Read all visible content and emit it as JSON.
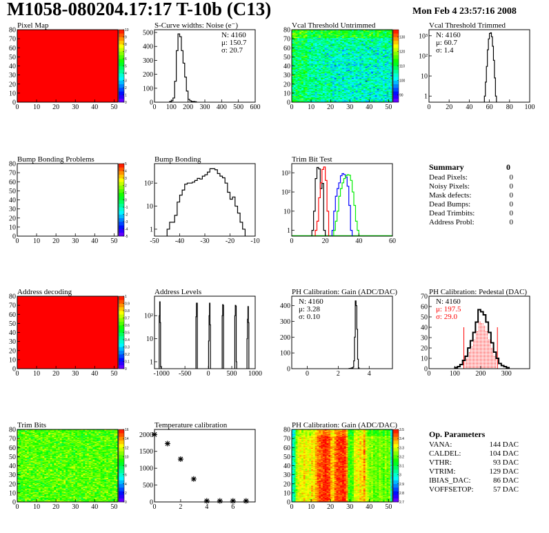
{
  "header": {
    "title": "M1058-080204.17:17 T-10b (C13)",
    "date": "Mon Feb  4 23:57:16 2008"
  },
  "summary": {
    "title": "Summary",
    "total": "0",
    "rows": [
      {
        "label": "Dead Pixels:",
        "value": "0"
      },
      {
        "label": "Noisy Pixels:",
        "value": "0"
      },
      {
        "label": "Mask defects:",
        "value": "0"
      },
      {
        "label": "Dead Bumps:",
        "value": "0"
      },
      {
        "label": "Dead Trimbits:",
        "value": "0"
      },
      {
        "label": "Address Probl:",
        "value": "0"
      }
    ]
  },
  "op_parameters": {
    "title": "Op. Parameters",
    "rows": [
      {
        "label": "VANA:",
        "value": "144 DAC"
      },
      {
        "label": "CALDEL:",
        "value": "104 DAC"
      },
      {
        "label": "VTHR:",
        "value": "93 DAC"
      },
      {
        "label": "VTRIM:",
        "value": "129 DAC"
      },
      {
        "label": "IBIAS_DAC:",
        "value": "86 DAC"
      },
      {
        "label": "VOFFSETOP:",
        "value": "57 DAC"
      }
    ]
  },
  "colors": {
    "palette_low": "#7f00ff",
    "palette_high": "#ff0000",
    "hist_line": "#000000",
    "stat_red": "#ff0000",
    "blue": "#0000ff",
    "green": "#00ee00"
  },
  "chart_data": [
    {
      "type": "heatmap",
      "title": "Pixel Map",
      "xlim": [
        0,
        52
      ],
      "ylim": [
        0,
        80
      ],
      "uniform_value": 10,
      "zlim": [
        0,
        10
      ],
      "x_ticks": [
        "0",
        "10",
        "20",
        "30",
        "40",
        "50"
      ],
      "y_ticks": [
        "0",
        "10",
        "20",
        "30",
        "40",
        "50",
        "60",
        "70",
        "80"
      ],
      "z_ticks": [
        "0",
        "1",
        "2",
        "3",
        "4",
        "5",
        "6",
        "7",
        "8",
        "9",
        "10"
      ]
    },
    {
      "type": "bar",
      "title": "S-Curve widths: Noise (e⁻)",
      "xlim": [
        0,
        600
      ],
      "ylim": [
        0,
        520
      ],
      "x_ticks": [
        "0",
        "100",
        "200",
        "300",
        "400",
        "500",
        "600"
      ],
      "y_ticks": [
        "0",
        "100",
        "200",
        "300",
        "400",
        "500"
      ],
      "bins": {
        "start": 90,
        "width": 10,
        "values": [
          5,
          10,
          30,
          150,
          370,
          490,
          470,
          370,
          280,
          180,
          80,
          20,
          10,
          5,
          5,
          3
        ]
      },
      "stats": [
        "N: 4160",
        "μ: 150.7",
        "σ: 20.7"
      ]
    },
    {
      "type": "heatmap",
      "title": "Vcal Threshold Untrimmed",
      "xlim": [
        0,
        52
      ],
      "ylim": [
        0,
        80
      ],
      "zlim": [
        85,
        135
      ],
      "typical": 106,
      "spread": 6,
      "x_ticks": [
        "0",
        "10",
        "20",
        "30",
        "40",
        "50"
      ],
      "y_ticks": [
        "0",
        "10",
        "20",
        "30",
        "40",
        "50",
        "60",
        "70",
        "80"
      ],
      "z_ticks": [
        "90",
        "100",
        "110",
        "120",
        "130"
      ]
    },
    {
      "type": "bar",
      "title": "Vcal Threshold Trimmed",
      "xlim": [
        0,
        100
      ],
      "ylim": [
        0.5,
        2000
      ],
      "log_y": true,
      "x_ticks": [
        "0",
        "20",
        "40",
        "60",
        "80",
        "100"
      ],
      "y_ticks": [
        "1",
        "10",
        "10²",
        "10³"
      ],
      "bins": {
        "start": 55,
        "width": 1,
        "values": [
          1,
          5,
          30,
          200,
          700,
          1300,
          1400,
          900,
          300,
          60,
          8,
          1
        ]
      },
      "stats": [
        "N: 4160",
        "μ: 60.7",
        "σ:  1.4"
      ]
    },
    {
      "type": "heatmap",
      "title": "Bump Bonding Problems",
      "xlim": [
        0,
        52
      ],
      "ylim": [
        0,
        80
      ],
      "zlim": [
        -5,
        5
      ],
      "empty": true,
      "x_ticks": [
        "0",
        "10",
        "20",
        "30",
        "40",
        "50"
      ],
      "y_ticks": [
        "0",
        "10",
        "20",
        "30",
        "40",
        "50",
        "60",
        "70",
        "80"
      ],
      "z_ticks": [
        "-5",
        "-4",
        "-3",
        "-2",
        "-1",
        "0",
        "1",
        "2",
        "3",
        "4",
        "5"
      ]
    },
    {
      "type": "bar",
      "title": "Bump Bonding",
      "xlim": [
        -50,
        -10
      ],
      "ylim": [
        0.5,
        700
      ],
      "log_y": true,
      "x_ticks": [
        "-50",
        "-40",
        "-30",
        "-20",
        "-10"
      ],
      "y_ticks": [
        "1",
        "10",
        "10²"
      ],
      "bins": {
        "start": -45,
        "width": 1,
        "values": [
          1,
          2,
          2,
          4,
          15,
          30,
          50,
          90,
          100,
          100,
          110,
          130,
          160,
          150,
          200,
          230,
          300,
          420,
          420,
          380,
          260,
          200,
          170,
          100,
          40,
          20,
          25,
          10,
          5,
          2,
          1
        ]
      }
    },
    {
      "type": "bar",
      "title": "Trim Bit Test",
      "xlim": [
        0,
        60
      ],
      "ylim": [
        0.5,
        3000
      ],
      "log_y": true,
      "x_ticks": [
        "0",
        "20",
        "40",
        "60"
      ],
      "y_ticks": [
        "1",
        "10",
        "10²",
        "10³"
      ],
      "series": [
        {
          "color": "#000000",
          "start": 12,
          "width": 1,
          "values": [
            1,
            10,
            500,
            1900,
            1600,
            150,
            280,
            1
          ]
        },
        {
          "color": "#ff0000",
          "start": 14,
          "width": 1,
          "values": [
            1,
            3,
            50,
            300,
            1500,
            2000,
            400,
            10
          ]
        },
        {
          "color": "#0000ff",
          "start": 24,
          "width": 1,
          "values": [
            1,
            10,
            60,
            150,
            300,
            700,
            900,
            800,
            600,
            200,
            20,
            1
          ]
        },
        {
          "color": "#00ee00",
          "start": 25,
          "width": 1,
          "values": [
            1,
            3,
            10,
            60,
            150,
            300,
            500,
            700,
            800,
            750,
            400,
            100,
            20,
            3,
            1
          ]
        }
      ]
    },
    {
      "type": "heatmap",
      "title": "Address decoding",
      "xlim": [
        0,
        52
      ],
      "ylim": [
        0,
        80
      ],
      "uniform_value": 1,
      "zlim": [
        0,
        1
      ],
      "x_ticks": [
        "0",
        "10",
        "20",
        "30",
        "40",
        "50"
      ],
      "y_ticks": [
        "0",
        "10",
        "20",
        "30",
        "40",
        "50",
        "60",
        "70",
        "80"
      ],
      "z_ticks": [
        "0",
        "0.1",
        "0.2",
        "0.3",
        "0.4",
        "0.5",
        "0.6",
        "0.7",
        "0.8",
        "0.9",
        "1"
      ]
    },
    {
      "type": "bar",
      "title": "Address Levels",
      "xlim": [
        -1150,
        1000
      ],
      "ylim": [
        0.5,
        700
      ],
      "log_y": true,
      "x_ticks": [
        "-1000",
        "-500",
        "0",
        "500",
        "1000"
      ],
      "y_ticks": [
        "1",
        "10",
        "10²"
      ],
      "peaks": [
        {
          "start": -1050,
          "width": 10,
          "values": [
            100,
            400,
            50,
            0.6
          ]
        },
        {
          "start": -265,
          "width": 10,
          "values": [
            90,
            350,
            350
          ]
        },
        {
          "start": 5,
          "width": 10,
          "values": [
            8,
            100,
            350,
            40
          ]
        },
        {
          "start": 295,
          "width": 10,
          "values": [
            100,
            300,
            280
          ]
        },
        {
          "start": 565,
          "width": 10,
          "values": [
            100,
            280,
            260,
            1
          ]
        },
        {
          "start": 825,
          "width": 10,
          "values": [
            10,
            70,
            250,
            50
          ]
        }
      ]
    },
    {
      "type": "bar",
      "title": "PH Calibration: Gain (ADC/DAC)",
      "xlim": [
        -1,
        5.5
      ],
      "ylim": [
        0,
        460
      ],
      "x_ticks": [
        "0",
        "2",
        "4"
      ],
      "y_ticks": [
        "0",
        "100",
        "200",
        "300",
        "400"
      ],
      "bins": {
        "start": 2.7,
        "width": 0.05,
        "values": [
          2,
          2,
          3,
          5,
          5,
          10,
          50,
          200,
          430,
          400,
          250,
          60,
          5
        ]
      },
      "stats": [
        "N: 4160",
        "μ: 3.28",
        "σ: 0.10"
      ]
    },
    {
      "type": "bar",
      "title": "PH Calibration: Pedestal (DAC)",
      "xlim": [
        0,
        390
      ],
      "ylim": [
        0,
        70
      ],
      "x_ticks": [
        "0",
        "100",
        "200",
        "300"
      ],
      "y_ticks": [
        "0",
        "10",
        "20",
        "30",
        "40",
        "50",
        "60",
        "70"
      ],
      "bins": {
        "start": 100,
        "width": 10,
        "values": [
          1,
          2,
          4,
          8,
          12,
          20,
          27,
          35,
          45,
          57,
          55,
          52,
          45,
          35,
          25,
          16,
          10,
          5,
          3,
          2,
          1
        ]
      },
      "fit_range": [
        135,
        265
      ],
      "fit_marker_height": 40,
      "stats": [
        "N: 4160",
        "μ: 197.5",
        "σ: 29.0"
      ]
    },
    {
      "type": "heatmap",
      "title": "Trim Bits",
      "xlim": [
        0,
        52
      ],
      "ylim": [
        0,
        80
      ],
      "zlim": [
        0,
        16
      ],
      "typical": 10,
      "spread": 1.6,
      "x_ticks": [
        "0",
        "10",
        "20",
        "30",
        "40",
        "50"
      ],
      "y_ticks": [
        "0",
        "10",
        "20",
        "30",
        "40",
        "50",
        "60",
        "70",
        "80"
      ],
      "z_ticks": [
        "0",
        "2",
        "4",
        "6",
        "8",
        "10",
        "12",
        "14",
        "16"
      ]
    },
    {
      "type": "scatter",
      "title": "Temperature calibration",
      "xlim": [
        0,
        7.7
      ],
      "ylim": [
        0,
        2150
      ],
      "x_ticks": [
        "0",
        "2",
        "4",
        "6"
      ],
      "y_ticks": [
        "0",
        "500",
        "1000",
        "1500",
        "2000"
      ],
      "x": [
        0,
        1,
        2,
        3,
        4,
        5,
        6,
        7
      ],
      "y": [
        2000,
        1730,
        1270,
        680,
        30,
        30,
        30,
        30
      ]
    },
    {
      "type": "heatmap",
      "title": "PH Calibration: Gain (ADC/DAC)",
      "xlim": [
        0,
        52
      ],
      "ylim": [
        0,
        80
      ],
      "zlim": [
        2.7,
        3.5
      ],
      "spread": 0.05,
      "column_means": [
        3.0,
        3.05,
        3.25,
        3.3,
        3.32,
        3.3,
        3.35,
        3.3,
        3.32,
        3.3,
        3.35,
        3.33,
        3.38,
        3.42,
        3.45,
        3.45,
        3.47,
        3.48,
        3.46,
        3.44,
        3.38,
        3.35,
        3.42,
        3.45,
        3.46,
        3.47,
        3.48,
        3.47,
        3.4,
        3.2,
        3.18,
        3.2,
        3.3,
        3.32,
        3.3,
        3.35,
        3.33,
        3.4,
        3.3,
        3.25,
        3.22,
        3.25,
        3.2,
        3.23,
        3.2,
        3.25,
        3.22,
        3.2,
        3.25,
        3.2,
        3.22,
        3.0
      ],
      "x_ticks": [
        "0",
        "10",
        "20",
        "30",
        "40",
        "50"
      ],
      "y_ticks": [
        "0",
        "10",
        "20",
        "30",
        "40",
        "50",
        "60",
        "70",
        "80"
      ],
      "z_ticks": [
        "2.7",
        "2.8",
        "2.9",
        "3",
        "3.1",
        "3.2",
        "3.3",
        "3.4",
        "3.5"
      ]
    }
  ]
}
